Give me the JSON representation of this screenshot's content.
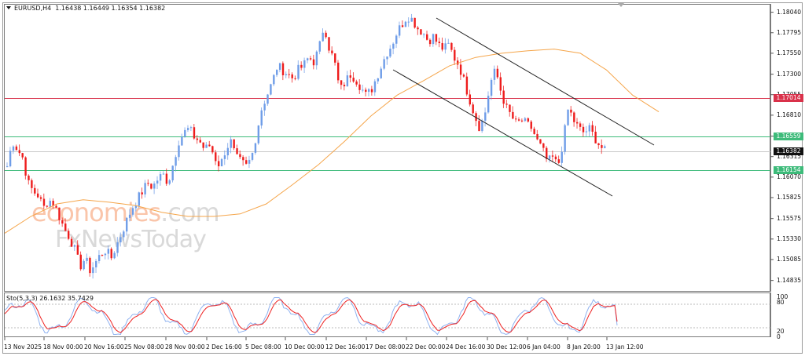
{
  "header": {
    "symbol_label": "EURUSD,H4",
    "ohlc_label": "1.16438 1.16449 1.16354 1.16382",
    "full_title": "EURUSD,H4  1.16438 1.16449 1.16354 1.16382"
  },
  "indicator": {
    "label": "Sto(5,3,3) 26.1632 35.7429",
    "levels": [
      "100",
      "80",
      "20",
      "0"
    ]
  },
  "watermark": {
    "line1_a": "economies",
    "line1_b": ".com",
    "line2": "FxNewsToday"
  },
  "colors": {
    "bull": "#6f9de8",
    "bear": "#ee1c1c",
    "ma": "#f5a54a",
    "resistance": "#d9314a",
    "support": "#3dbb7a",
    "current": "#111111",
    "channel": "#222222",
    "sto_main": "#8fb2f0",
    "sto_signal": "#ee2222"
  },
  "price_axis": {
    "ticks": [
      "1.18040",
      "1.17795",
      "1.17550",
      "1.17300",
      "1.17055",
      "1.16810",
      "1.16559",
      "1.16315",
      "1.16070",
      "1.15825",
      "1.15575",
      "1.15330",
      "1.15085",
      "1.14835"
    ],
    "tags": [
      {
        "label": "1.17014",
        "type": "resistance"
      },
      {
        "label": "1.16559",
        "type": "support"
      },
      {
        "label": "1.16382",
        "type": "current"
      },
      {
        "label": "1.16154",
        "type": "support"
      }
    ]
  },
  "time_axis": {
    "labels": [
      "13 Nov 2025",
      "18 Nov 00:00",
      "20 Nov 16:00",
      "25 Nov 08:00",
      "28 Nov 00:00",
      "2 Dec 16:00",
      "5 Dec 08:00",
      "10 Dec 00:00",
      "12 Dec 16:00",
      "17 Dec 08:00",
      "22 Dec 00:00",
      "24 Dec 16:00",
      "30 Dec 12:00",
      "6 Jan 04:00",
      "8 Jan 20:00",
      "13 Jan 12:00"
    ]
  },
  "chart_data": {
    "type": "candlestick",
    "title": "EURUSD,H4",
    "ylim": [
      1.1471,
      1.1813
    ],
    "ohlc_last": {
      "open": 1.16438,
      "high": 1.16449,
      "low": 1.16354,
      "close": 1.16382
    },
    "horizontal_lines": [
      {
        "price": 1.17014,
        "role": "resistance"
      },
      {
        "price": 1.16559,
        "role": "support"
      },
      {
        "price": 1.16382,
        "role": "current"
      },
      {
        "price": 1.16154,
        "role": "support"
      }
    ],
    "trend_channel": {
      "upper": [
        [
          "22 Dec 00:00",
          1.181
        ],
        [
          "13 Jan 20:00",
          1.1655
        ]
      ],
      "lower": [
        [
          "17 Dec 08:00",
          1.1745
        ],
        [
          "13 Jan 20:00",
          1.1598
        ]
      ]
    },
    "close_series_approx": [
      1.162,
      1.165,
      1.164,
      1.163,
      1.16,
      1.159,
      1.1585,
      1.157,
      1.158,
      1.1575,
      1.156,
      1.1545,
      1.1535,
      1.152,
      1.15,
      1.151,
      1.1495,
      1.1505,
      1.1515,
      1.152,
      1.151,
      1.1525,
      1.154,
      1.1555,
      1.157,
      1.158,
      1.159,
      1.16,
      1.1595,
      1.1605,
      1.161,
      1.16,
      1.1625,
      1.165,
      1.166,
      1.1665,
      1.1655,
      1.165,
      1.164,
      1.1645,
      1.163,
      1.162,
      1.164,
      1.165,
      1.163,
      1.1625,
      1.162,
      1.163,
      1.166,
      1.169,
      1.1705,
      1.172,
      1.174,
      1.1735,
      1.173,
      1.1725,
      1.1735,
      1.174,
      1.175,
      1.1745,
      1.176,
      1.179,
      1.176,
      1.1745,
      1.171,
      1.172,
      1.173,
      1.1725,
      1.1715,
      1.1705,
      1.171,
      1.1725,
      1.174,
      1.1755,
      1.1765,
      1.178,
      1.179,
      1.18,
      1.1795,
      1.1785,
      1.178,
      1.177,
      1.1775,
      1.1765,
      1.176,
      1.1765,
      1.175,
      1.174,
      1.172,
      1.17,
      1.168,
      1.1665,
      1.1685,
      1.172,
      1.1735,
      1.171,
      1.169,
      1.168,
      1.167,
      1.1675,
      1.167,
      1.1665,
      1.165,
      1.164,
      1.1625,
      1.163,
      1.162,
      1.165,
      1.169,
      1.1675,
      1.1665,
      1.166,
      1.1665,
      1.1655,
      1.1645,
      1.1638
    ],
    "ma_series_approx": [
      1.154,
      1.156,
      1.1575,
      1.158,
      1.1577,
      1.1573,
      1.1565,
      1.156,
      1.156,
      1.1563,
      1.1575,
      1.1598,
      1.1622,
      1.165,
      1.168,
      1.1705,
      1.1722,
      1.174,
      1.175,
      1.1755,
      1.1758,
      1.176,
      1.1755,
      1.1735,
      1.1705,
      1.1685
    ],
    "stochastic": {
      "params": "5,3,3",
      "main": 26.1632,
      "signal": 35.7429,
      "levels": [
        20,
        80
      ],
      "range": [
        0,
        100
      ]
    }
  }
}
